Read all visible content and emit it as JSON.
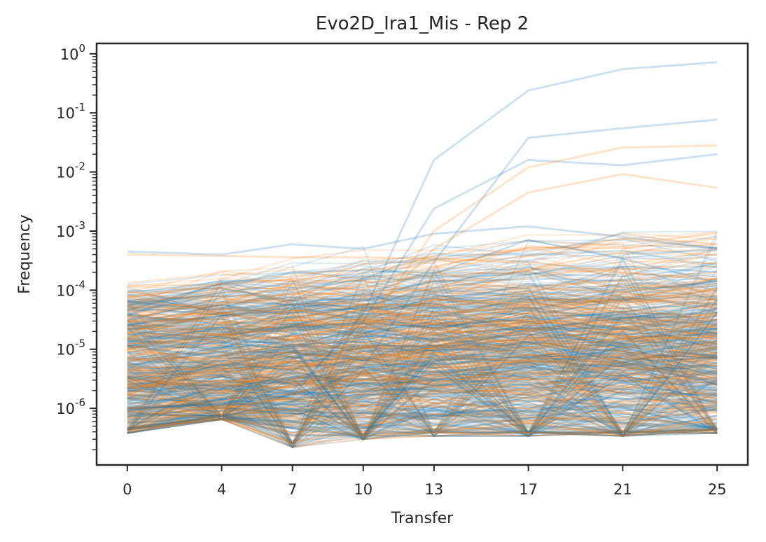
{
  "chart_data": {
    "type": "line",
    "title": "Evo2D_Ira1_Mis - Rep 2",
    "xlabel": "Transfer",
    "ylabel": "Frequency",
    "yscale": "log",
    "x_ticks": [
      0,
      4,
      7,
      10,
      13,
      17,
      21,
      25
    ],
    "x_tick_labels": [
      "0",
      "4",
      "7",
      "10",
      "13",
      "17",
      "21",
      "25"
    ],
    "xlim": [
      -1.3,
      26.3
    ],
    "y_tick_base": "10",
    "y_tick_exponents": [
      "-6",
      "-5",
      "-4",
      "-3",
      "-2",
      "-1",
      "0"
    ],
    "ylim": [
      1.1e-07,
      1.5
    ],
    "grid": false,
    "legend": "none",
    "series_colors": [
      "#1f77b4",
      "#ff7f0e"
    ],
    "representative_series": [
      {
        "color": "#1f77b4",
        "values": [
          1e-06,
          1.2e-06,
          1.6e-06,
          4e-05,
          0.016,
          0.24,
          0.55,
          0.72
        ]
      },
      {
        "color": "#1f77b4",
        "values": [
          1e-06,
          1.1e-06,
          1.3e-06,
          5e-06,
          0.0003,
          0.038,
          0.055,
          0.077
        ]
      },
      {
        "color": "#1f77b4",
        "values": [
          1e-06,
          1.2e-06,
          2e-06,
          3e-05,
          0.0024,
          0.016,
          0.013,
          0.02
        ]
      },
      {
        "color": "#ff7f0e",
        "values": [
          1e-06,
          1e-06,
          1.5e-06,
          2e-05,
          0.001,
          0.012,
          0.026,
          0.028
        ]
      },
      {
        "color": "#ff7f0e",
        "values": [
          1e-06,
          1.3e-06,
          2.5e-06,
          3e-05,
          0.0005,
          0.0045,
          0.0092,
          0.0054
        ]
      },
      {
        "color": "#1f77b4",
        "values": [
          0.00045,
          0.0004,
          0.0006,
          0.0005,
          0.0009,
          0.0012,
          0.0008,
          0.0005
        ]
      },
      {
        "color": "#ff7f0e",
        "values": [
          0.0004,
          0.00038,
          0.00036,
          0.00036,
          0.00034,
          0.0003,
          0.0002,
          0.00015
        ]
      }
    ],
    "background_series_count": 700
  }
}
